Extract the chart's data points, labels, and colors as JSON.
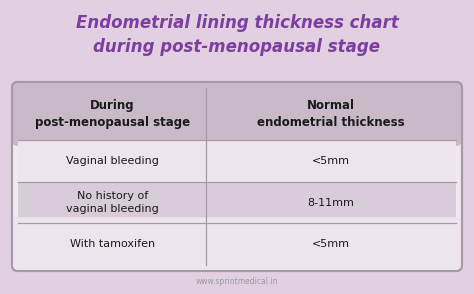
{
  "title_line1": "Endometrial lining thickness chart",
  "title_line2": "during post-menopausal stage",
  "title_color": "#7B3FA0",
  "bg_color": "#E2D0E2",
  "table_bg_white": "#F0EAF0",
  "header_bg": "#C8BAC8",
  "row_odd_bg": "#EDE5ED",
  "row_even_bg": "#D8CCDA",
  "header_col1": "During\npost-menopausal stage",
  "header_col2": "Normal\nendometrial thickness",
  "rows": [
    [
      "Vaginal bleeding",
      "<5mm"
    ],
    [
      "No history of\nvaginal bleeding",
      "8-11mm"
    ],
    [
      "With tamoxifen",
      "<5mm"
    ]
  ],
  "footer": "www.sprintmedical.in",
  "table_border_color": "#A898A8",
  "header_text_color": "#1a1a1a",
  "row_text_color": "#1a1a1a",
  "col_split": 0.43
}
